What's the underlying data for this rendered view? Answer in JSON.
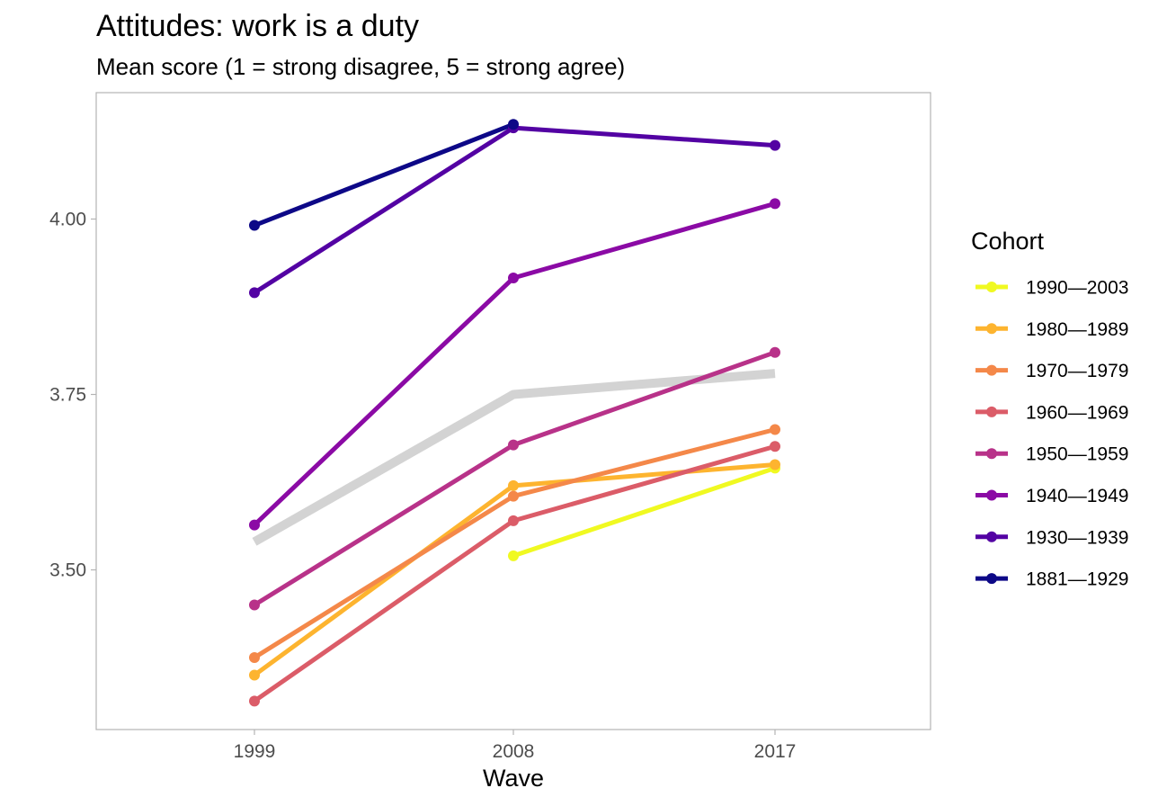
{
  "chart_data": {
    "type": "line",
    "title": "Attitudes: work is a duty",
    "subtitle": "Mean score (1 = strong disagree, 5 = strong agree)",
    "xlabel": "Wave",
    "ylabel": "",
    "x": [
      "1999",
      "2008",
      "2017"
    ],
    "y_ticks": [
      3.5,
      3.75,
      4.0
    ],
    "y_tick_labels": [
      "3.50",
      "3.75",
      "4.00"
    ],
    "ylim": [
      3.27,
      4.18
    ],
    "grid": false,
    "legend": {
      "title": "Cohort",
      "position": "right"
    },
    "overall": {
      "values": [
        3.54,
        3.75,
        3.78
      ],
      "color": "#d3d3d3"
    },
    "series": [
      {
        "name": "1990—2003",
        "color": "#f0f921",
        "values": [
          null,
          3.52,
          3.645
        ]
      },
      {
        "name": "1980—1989",
        "color": "#fdb42f",
        "values": [
          3.35,
          3.62,
          3.65
        ]
      },
      {
        "name": "1970—1979",
        "color": "#f48849",
        "values": [
          3.375,
          3.605,
          3.7
        ]
      },
      {
        "name": "1960—1969",
        "color": "#db5c68",
        "values": [
          3.313,
          3.57,
          3.676
        ]
      },
      {
        "name": "1950—1959",
        "color": "#b83289",
        "values": [
          3.45,
          3.678,
          3.81
        ]
      },
      {
        "name": "1940—1949",
        "color": "#8b0aa5",
        "values": [
          3.564,
          3.916,
          4.022
        ]
      },
      {
        "name": "1930—1939",
        "color": "#5302a3",
        "values": [
          3.895,
          4.13,
          4.105
        ]
      },
      {
        "name": "1881—1929",
        "color": "#0d0887",
        "values": [
          3.991,
          4.135,
          null
        ]
      }
    ]
  }
}
